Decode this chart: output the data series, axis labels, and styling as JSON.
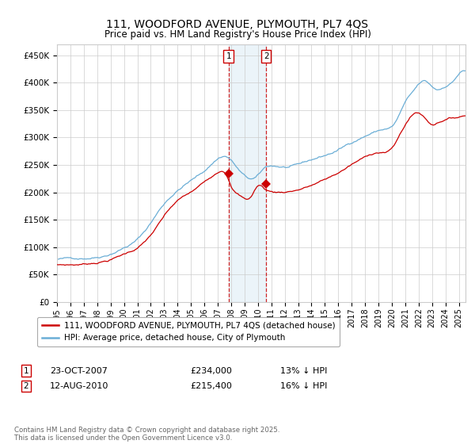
{
  "title": "111, WOODFORD AVENUE, PLYMOUTH, PL7 4QS",
  "subtitle": "Price paid vs. HM Land Registry's House Price Index (HPI)",
  "xlim_start": 1995.0,
  "xlim_end": 2025.5,
  "ylim_min": 0,
  "ylim_max": 470000,
  "yticks": [
    0,
    50000,
    100000,
    150000,
    200000,
    250000,
    300000,
    350000,
    400000,
    450000
  ],
  "ytick_labels": [
    "£0",
    "£50K",
    "£100K",
    "£150K",
    "£200K",
    "£250K",
    "£300K",
    "£350K",
    "£400K",
    "£450K"
  ],
  "xticks": [
    1995,
    1996,
    1997,
    1998,
    1999,
    2000,
    2001,
    2002,
    2003,
    2004,
    2005,
    2006,
    2007,
    2008,
    2009,
    2010,
    2011,
    2012,
    2013,
    2014,
    2015,
    2016,
    2017,
    2018,
    2019,
    2020,
    2021,
    2022,
    2023,
    2024,
    2025
  ],
  "hpi_color": "#6baed6",
  "property_color": "#cc0000",
  "sale1_x": 2007.81,
  "sale1_y": 234000,
  "sale1_label": "1",
  "sale2_x": 2010.62,
  "sale2_y": 215400,
  "sale2_label": "2",
  "legend_property": "111, WOODFORD AVENUE, PLYMOUTH, PL7 4QS (detached house)",
  "legend_hpi": "HPI: Average price, detached house, City of Plymouth",
  "annotation1_date": "23-OCT-2007",
  "annotation1_price": "£234,000",
  "annotation1_hpi": "13% ↓ HPI",
  "annotation2_date": "12-AUG-2010",
  "annotation2_price": "£215,400",
  "annotation2_hpi": "16% ↓ HPI",
  "footer": "Contains HM Land Registry data © Crown copyright and database right 2025.\nThis data is licensed under the Open Government Licence v3.0.",
  "background_color": "#ffffff",
  "grid_color": "#cccccc",
  "hpi_trend_years": [
    1995,
    1996,
    1997,
    1998,
    1999,
    2000,
    2001,
    2002,
    2003,
    2004,
    2005,
    2006,
    2007,
    2007.7,
    2008.5,
    2009.5,
    2010,
    2010.5,
    2011,
    2012,
    2013,
    2014,
    2015,
    2016,
    2017,
    2018,
    2019,
    2019.5,
    2020,
    2020.5,
    2021,
    2021.5,
    2022,
    2022.5,
    2023,
    2023.5,
    2024,
    2024.5,
    2025,
    2025.4
  ],
  "hpi_trend_vals": [
    78000,
    79000,
    81000,
    85000,
    93000,
    105000,
    120000,
    150000,
    185000,
    210000,
    228000,
    245000,
    268000,
    272000,
    250000,
    230000,
    235000,
    248000,
    252000,
    250000,
    252000,
    260000,
    268000,
    278000,
    292000,
    305000,
    315000,
    318000,
    322000,
    340000,
    365000,
    380000,
    395000,
    400000,
    390000,
    385000,
    392000,
    400000,
    415000,
    420000
  ],
  "prop_trend_years": [
    1995,
    1996,
    1997,
    1998,
    1999,
    2000,
    2001,
    2002,
    2003,
    2004,
    2005,
    2006,
    2007,
    2007.7,
    2008,
    2008.5,
    2009,
    2009.5,
    2010,
    2010.5,
    2011,
    2012,
    2013,
    2014,
    2015,
    2016,
    2017,
    2018,
    2019,
    2020,
    2020.5,
    2021,
    2021.5,
    2022,
    2022.5,
    2023,
    2023.5,
    2024,
    2025,
    2025.4
  ],
  "prop_trend_vals": [
    68000,
    68500,
    70000,
    74000,
    80000,
    90000,
    102000,
    125000,
    158000,
    185000,
    200000,
    218000,
    238000,
    234000,
    215000,
    200000,
    192000,
    196000,
    215400,
    210000,
    205000,
    205000,
    210000,
    218000,
    228000,
    240000,
    255000,
    268000,
    278000,
    285000,
    305000,
    328000,
    345000,
    350000,
    340000,
    330000,
    335000,
    340000,
    345000,
    348000
  ]
}
